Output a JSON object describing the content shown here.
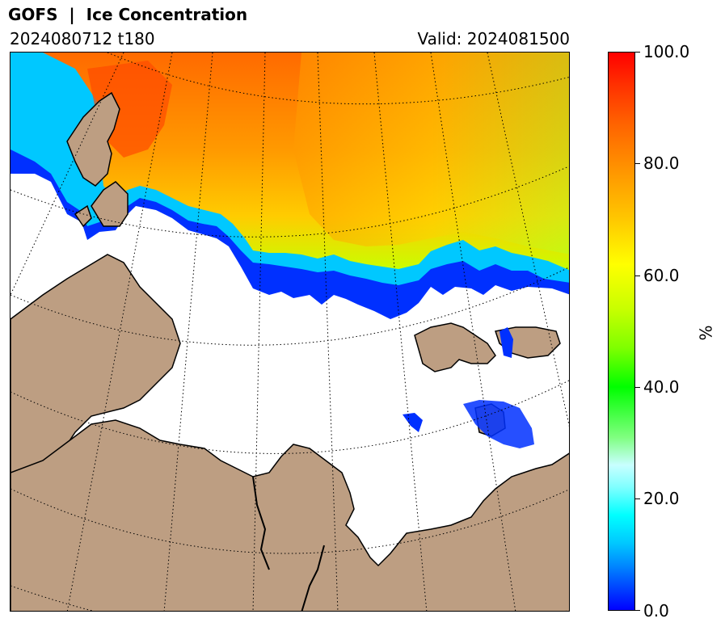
{
  "header": {
    "title": "GOFS  |  Ice Concentration",
    "run": "2024080712 t180",
    "valid": "Valid: 2024081500"
  },
  "colorbar": {
    "unit": "%",
    "ticks": [
      "0.0",
      "20.0",
      "40.0",
      "60.0",
      "80.0",
      "100.0"
    ],
    "min": 0,
    "max": 100,
    "stops": [
      "#0000ff",
      "#00ffff",
      "#00ff00",
      "#ffff00",
      "#ff8c00",
      "#ff0000"
    ]
  },
  "map": {
    "land_color": "#bd9e82",
    "ocean_color": "#ffffff",
    "graticule": "dotted"
  }
}
